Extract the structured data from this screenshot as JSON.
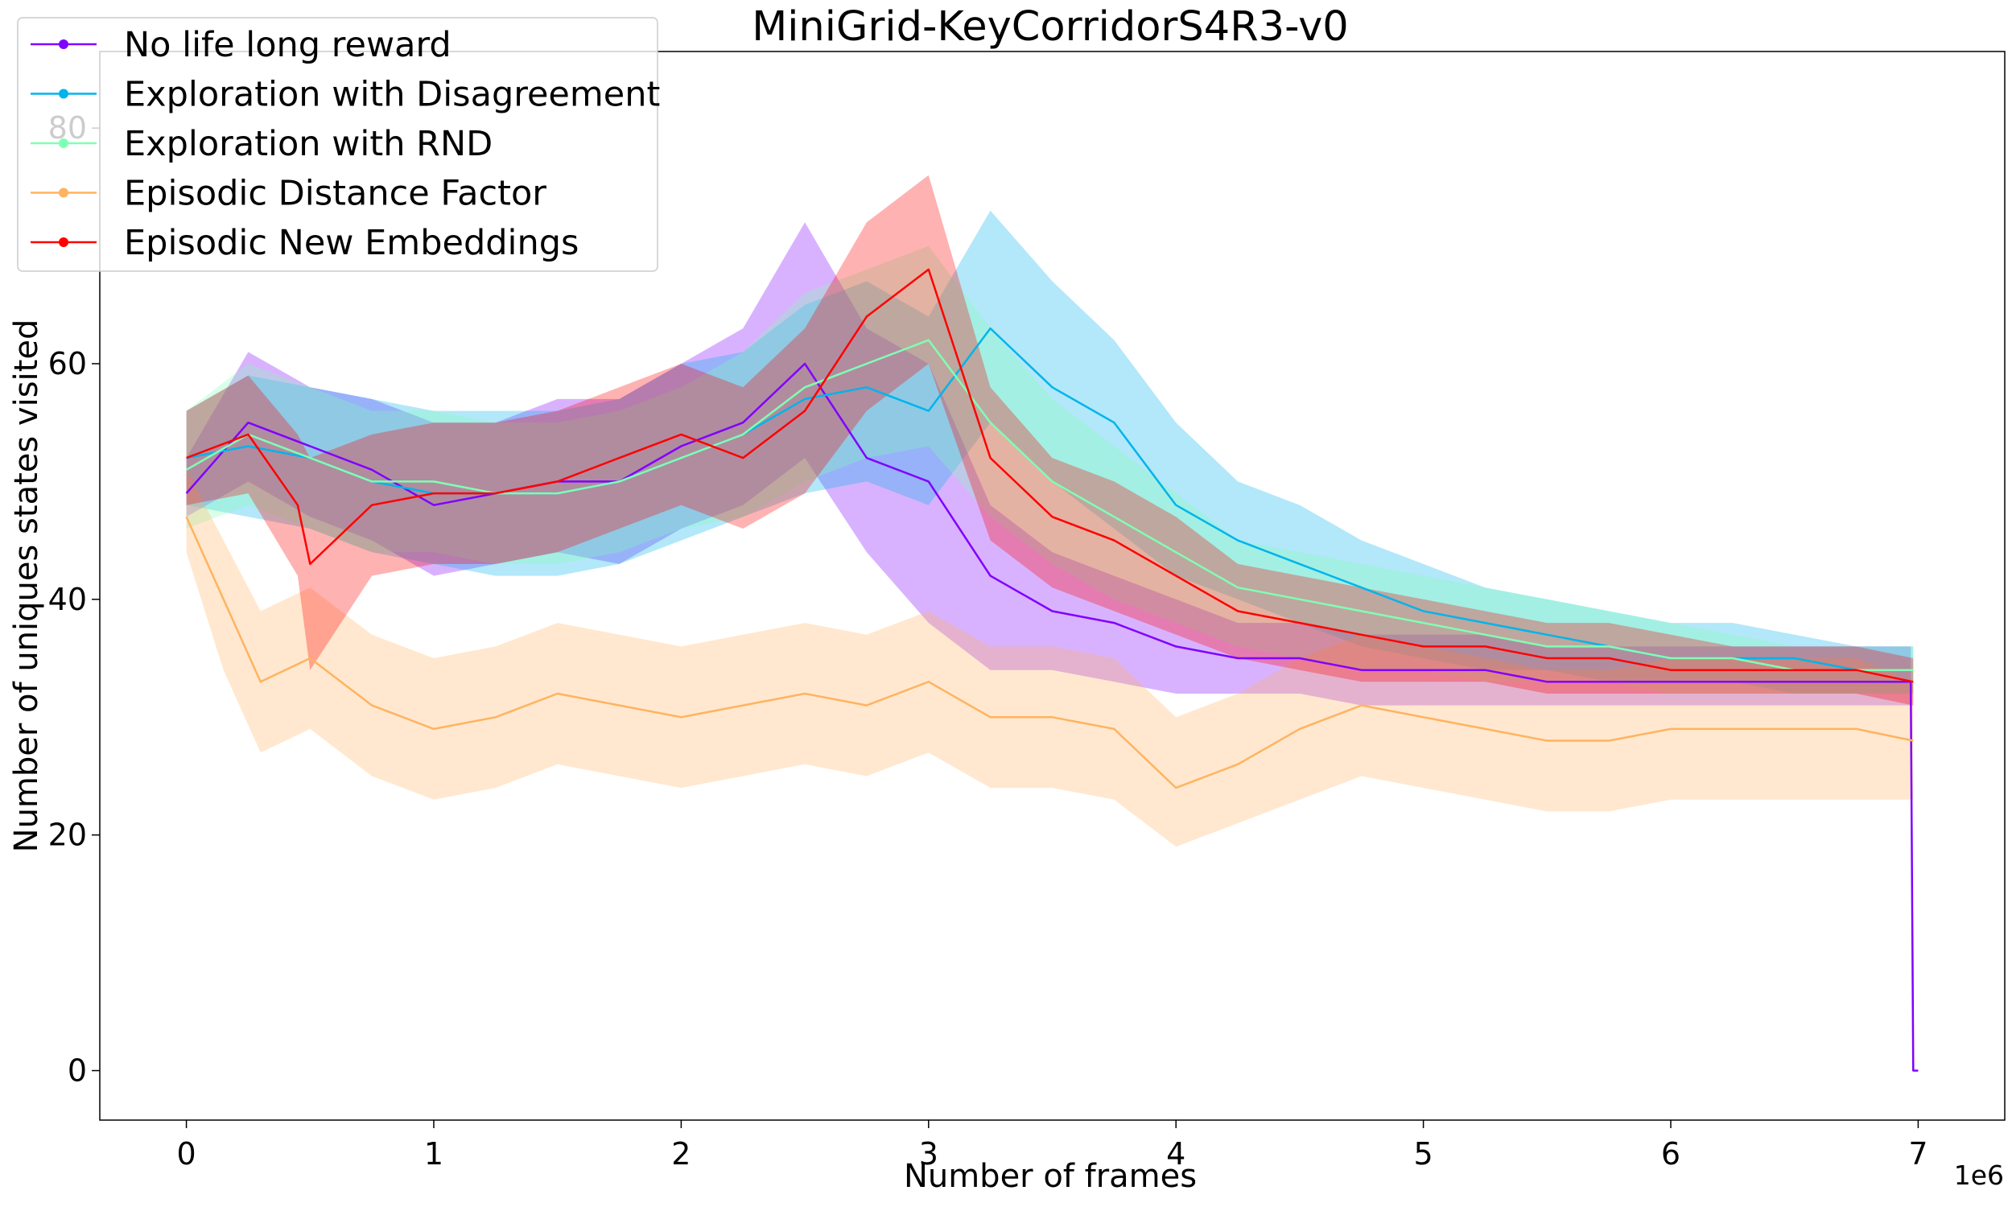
{
  "chart_data": {
    "type": "line",
    "title": "MiniGrid-KeyCorridorS4R3-v0",
    "xlabel": "Number of frames",
    "ylabel": "Number of uniques states visited",
    "x_exponent_label": "1e6",
    "xlim": [
      -0.35,
      7.35
    ],
    "ylim": [
      -4.2,
      86.5
    ],
    "x_scale": 1000000,
    "xticks": [
      0,
      1,
      2,
      3,
      4,
      5,
      6,
      7
    ],
    "yticks": [
      0,
      20,
      40,
      60,
      80
    ],
    "grid": false,
    "legend_position": "top-left",
    "series": [
      {
        "name": "No life long reward",
        "color": "#8000ff",
        "x": [
          0,
          0.25,
          0.5,
          0.75,
          1.0,
          1.25,
          1.5,
          1.75,
          2.0,
          2.25,
          2.5,
          2.75,
          3.0,
          3.25,
          3.5,
          3.75,
          4.0,
          4.25,
          4.5,
          4.75,
          5.0,
          5.25,
          5.5,
          5.75,
          6.0,
          6.25,
          6.5,
          6.75,
          6.97,
          6.98,
          7.0
        ],
        "mean": [
          49,
          55,
          53,
          51,
          48,
          49,
          50,
          50,
          53,
          55,
          60,
          52,
          50,
          42,
          39,
          38,
          36,
          35,
          35,
          34,
          34,
          34,
          33,
          33,
          33,
          33,
          33,
          33,
          33,
          0,
          0
        ],
        "lower": [
          47,
          50,
          47,
          45,
          42,
          43,
          44,
          43,
          46,
          48,
          52,
          44,
          38,
          34,
          34,
          33,
          32,
          32,
          32,
          31,
          31,
          31,
          31,
          31,
          31,
          31,
          31,
          31,
          31,
          0,
          0
        ],
        "upper": [
          52,
          61,
          58,
          57,
          55,
          55,
          57,
          57,
          60,
          63,
          72,
          63,
          60,
          48,
          44,
          42,
          40,
          38,
          38,
          37,
          37,
          37,
          36,
          36,
          36,
          36,
          36,
          36,
          36,
          0,
          0
        ]
      },
      {
        "name": "Exploration with Disagreement",
        "color": "#00b4eb",
        "x": [
          0,
          0.25,
          0.5,
          0.75,
          1.0,
          1.25,
          1.5,
          1.75,
          2.0,
          2.25,
          2.5,
          2.75,
          3.0,
          3.25,
          3.5,
          3.75,
          4.0,
          4.25,
          4.5,
          4.75,
          5.0,
          5.25,
          5.5,
          5.75,
          6.0,
          6.25,
          6.5,
          6.75,
          6.98
        ],
        "mean": [
          52,
          53,
          52,
          50,
          49,
          49,
          49,
          50,
          52,
          54,
          57,
          58,
          56,
          63,
          58,
          55,
          48,
          45,
          43,
          41,
          39,
          38,
          37,
          36,
          35,
          35,
          35,
          34,
          34
        ],
        "lower": [
          48,
          47,
          46,
          44,
          43,
          42,
          42,
          43,
          45,
          47,
          49,
          50,
          48,
          55,
          50,
          46,
          42,
          40,
          38,
          36,
          35,
          34,
          34,
          33,
          33,
          33,
          32,
          32,
          32
        ],
        "upper": [
          56,
          59,
          58,
          57,
          56,
          56,
          56,
          57,
          60,
          61,
          65,
          67,
          64,
          73,
          67,
          62,
          55,
          50,
          48,
          45,
          43,
          41,
          40,
          39,
          38,
          38,
          37,
          36,
          36
        ]
      },
      {
        "name": "Exploration with RND",
        "color": "#80ffb4",
        "x": [
          0,
          0.25,
          0.5,
          0.75,
          1.0,
          1.25,
          1.5,
          1.75,
          2.0,
          2.25,
          2.5,
          2.75,
          3.0,
          3.25,
          3.5,
          3.75,
          4.0,
          4.25,
          4.5,
          4.75,
          5.0,
          5.25,
          5.5,
          5.75,
          6.0,
          6.25,
          6.5,
          6.75,
          6.98
        ],
        "mean": [
          51,
          54,
          52,
          50,
          50,
          49,
          49,
          50,
          52,
          54,
          58,
          60,
          62,
          55,
          50,
          47,
          44,
          41,
          40,
          39,
          38,
          37,
          36,
          36,
          35,
          35,
          34,
          34,
          34
        ],
        "lower": [
          46,
          48,
          46,
          44,
          44,
          43,
          43,
          44,
          46,
          47,
          50,
          52,
          53,
          47,
          43,
          40,
          38,
          36,
          35,
          34,
          34,
          33,
          33,
          33,
          32,
          32,
          32,
          32,
          32
        ],
        "upper": [
          56,
          60,
          58,
          56,
          56,
          55,
          55,
          56,
          58,
          61,
          66,
          68,
          70,
          63,
          57,
          53,
          49,
          45,
          44,
          43,
          42,
          41,
          40,
          39,
          38,
          37,
          36,
          36,
          36
        ]
      },
      {
        "name": "Episodic Distance Factor",
        "color": "#ffb360",
        "x": [
          0,
          0.15,
          0.3,
          0.5,
          0.75,
          1.0,
          1.25,
          1.5,
          1.75,
          2.0,
          2.25,
          2.5,
          2.75,
          3.0,
          3.25,
          3.5,
          3.75,
          4.0,
          4.25,
          4.5,
          4.75,
          5.0,
          5.25,
          5.5,
          5.75,
          6.0,
          6.25,
          6.5,
          6.75,
          6.98
        ],
        "mean": [
          47,
          40,
          33,
          35,
          31,
          29,
          30,
          32,
          31,
          30,
          31,
          32,
          31,
          33,
          30,
          30,
          29,
          24,
          26,
          29,
          31,
          30,
          29,
          28,
          28,
          29,
          29,
          29,
          29,
          28
        ],
        "lower": [
          44,
          34,
          27,
          29,
          25,
          23,
          24,
          26,
          25,
          24,
          25,
          26,
          25,
          27,
          24,
          24,
          23,
          19,
          21,
          23,
          25,
          24,
          23,
          22,
          22,
          23,
          23,
          23,
          23,
          23
        ],
        "upper": [
          51,
          45,
          39,
          41,
          37,
          35,
          36,
          38,
          37,
          36,
          37,
          38,
          37,
          39,
          36,
          36,
          35,
          30,
          32,
          35,
          37,
          36,
          35,
          34,
          34,
          35,
          35,
          35,
          35,
          33
        ]
      },
      {
        "name": "Episodic New Embeddings",
        "color": "#ff0000",
        "x": [
          0,
          0.25,
          0.45,
          0.5,
          0.75,
          1.0,
          1.25,
          1.5,
          1.75,
          2.0,
          2.25,
          2.5,
          2.75,
          3.0,
          3.25,
          3.5,
          3.75,
          4.0,
          4.25,
          4.5,
          4.75,
          5.0,
          5.25,
          5.5,
          5.75,
          6.0,
          6.25,
          6.5,
          6.75,
          6.98
        ],
        "mean": [
          52,
          54,
          48,
          43,
          48,
          49,
          49,
          50,
          52,
          54,
          52,
          56,
          64,
          68,
          52,
          47,
          45,
          42,
          39,
          38,
          37,
          36,
          36,
          35,
          35,
          34,
          34,
          34,
          34,
          33
        ],
        "lower": [
          48,
          49,
          42,
          34,
          42,
          43,
          43,
          44,
          46,
          48,
          46,
          49,
          56,
          60,
          45,
          41,
          39,
          37,
          35,
          34,
          33,
          33,
          33,
          32,
          32,
          32,
          32,
          32,
          32,
          31
        ],
        "upper": [
          56,
          59,
          54,
          52,
          54,
          55,
          55,
          56,
          58,
          60,
          58,
          63,
          72,
          76,
          58,
          52,
          50,
          47,
          43,
          42,
          41,
          40,
          39,
          38,
          38,
          37,
          36,
          36,
          36,
          35
        ]
      }
    ]
  }
}
